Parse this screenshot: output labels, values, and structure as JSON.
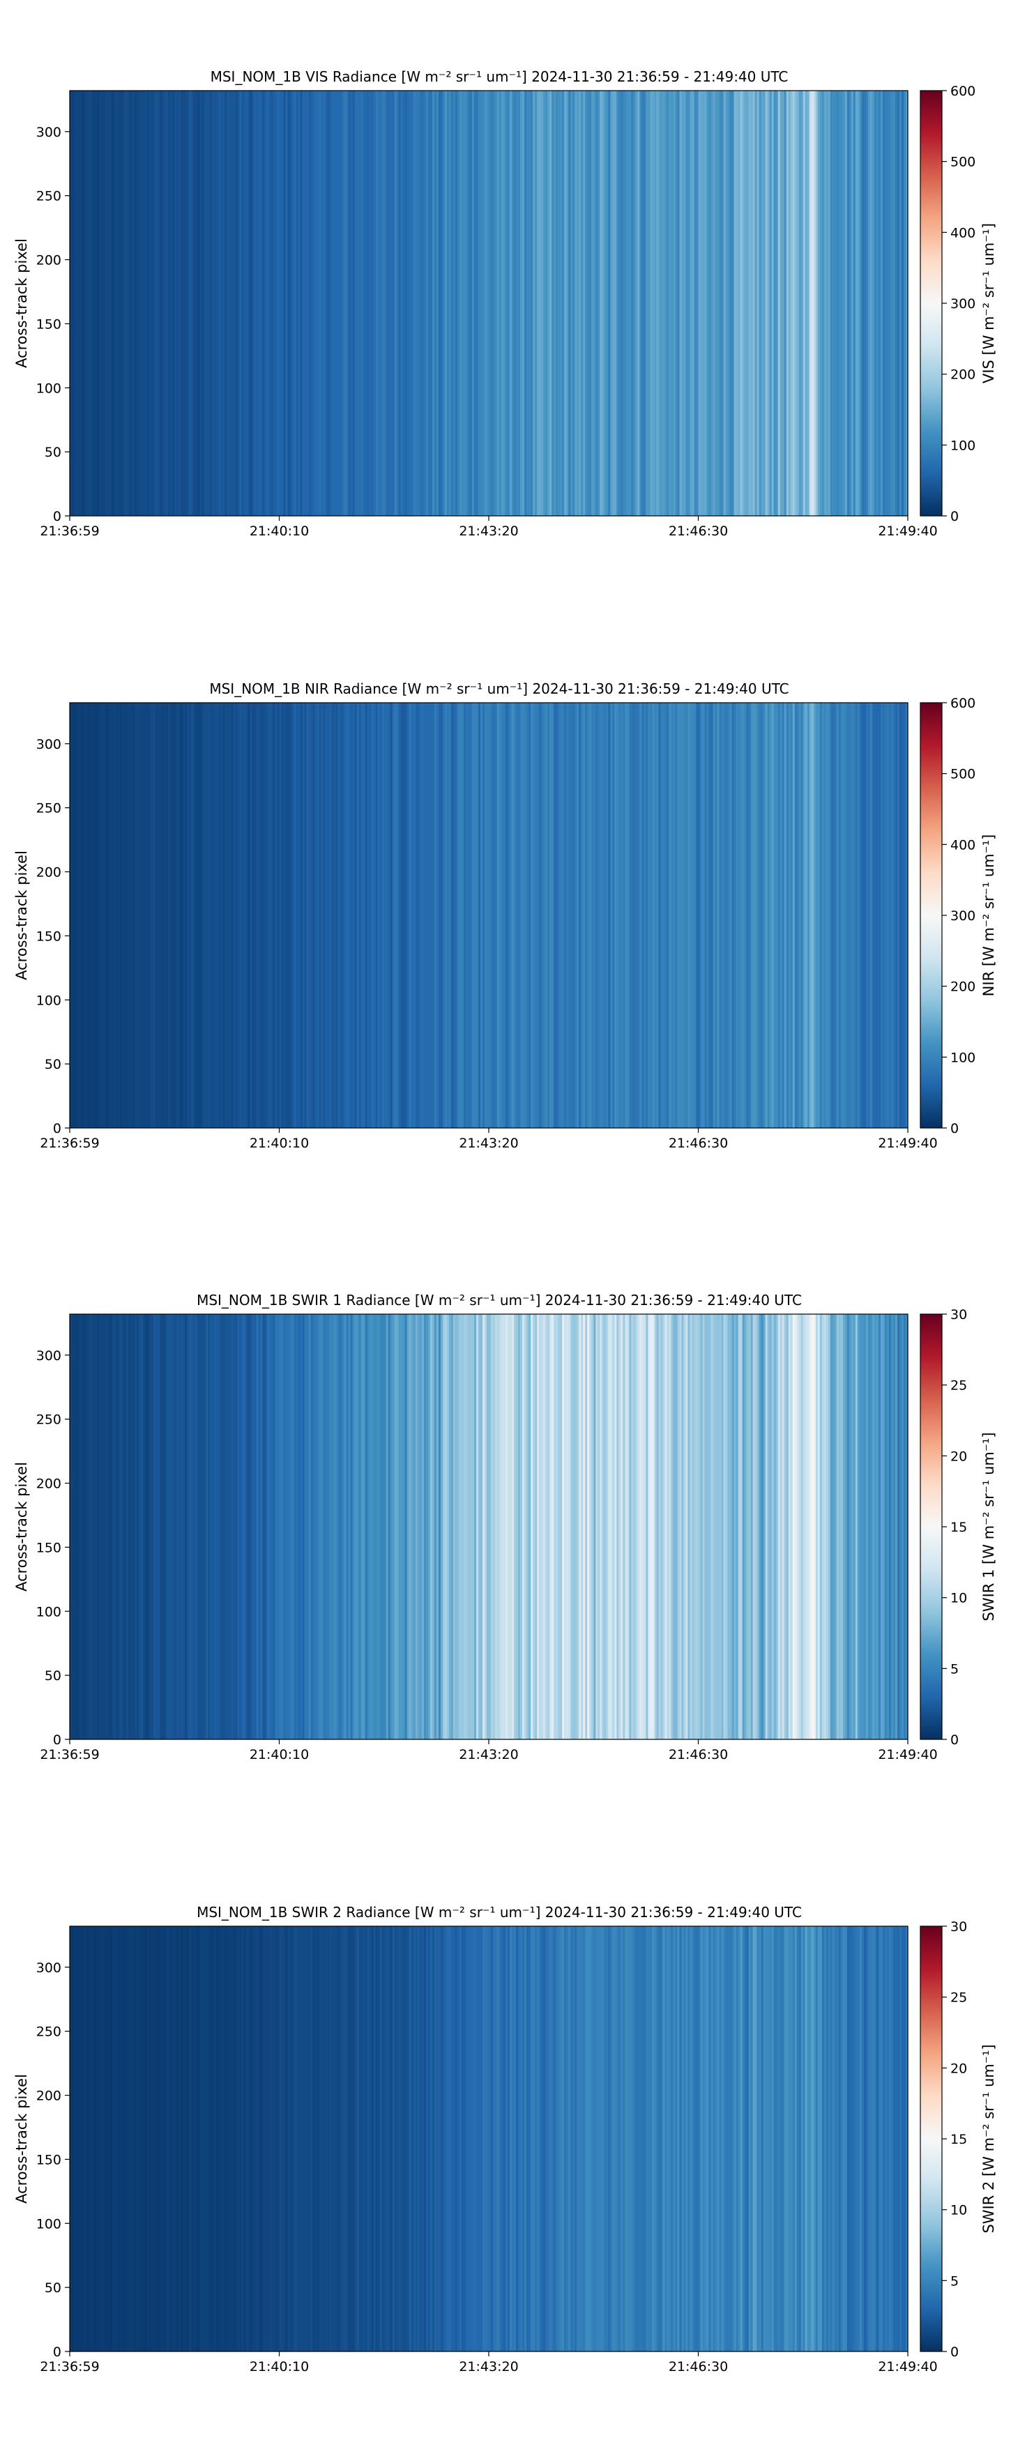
{
  "colormap": [
    "#053061",
    "#2166ac",
    "#4393c3",
    "#92c5de",
    "#d1e5f0",
    "#f7f7f7",
    "#fddbc7",
    "#f4a582",
    "#d6604d",
    "#b2182b",
    "#67001f"
  ],
  "chart_data": [
    {
      "type": "heatmap",
      "title": "MSI_NOM_1B VIS Radiance [W m⁻² sr⁻¹ um⁻¹]    2024-11-30    21:36:59 - 21:49:40 UTC",
      "xlabel": "",
      "ylabel": "Across-track pixel",
      "x_tick_labels": [
        "21:36:59",
        "21:40:10",
        "21:43:20",
        "21:46:30",
        "21:49:40"
      ],
      "y_ticks": [
        0,
        50,
        100,
        150,
        200,
        250,
        300
      ],
      "ylim": [
        0,
        332
      ],
      "colorbar": {
        "label": "VIS [W m⁻² sr⁻¹ um⁻¹]",
        "range": [
          0,
          600
        ],
        "ticks": [
          0,
          100,
          200,
          300,
          400,
          500,
          600
        ]
      },
      "profile": {
        "x": [
          0,
          0.2,
          0.4,
          0.5,
          0.6,
          0.75,
          0.88,
          0.91,
          1
        ],
        "value": [
          20,
          45,
          80,
          110,
          120,
          125,
          160,
          130,
          100
        ]
      },
      "bright_bands": [
        {
          "x": 0.885,
          "value": 260
        },
        {
          "x": 0.56,
          "value": 150
        },
        {
          "x": 0.7,
          "value": 150
        }
      ]
    },
    {
      "type": "heatmap",
      "title": "MSI_NOM_1B NIR Radiance [W m⁻² sr⁻¹ um⁻¹]    2024-11-30    21:36:59 - 21:49:40 UTC",
      "xlabel": "",
      "ylabel": "Across-track pixel",
      "x_tick_labels": [
        "21:36:59",
        "21:40:10",
        "21:43:20",
        "21:46:30",
        "21:49:40"
      ],
      "y_ticks": [
        0,
        50,
        100,
        150,
        200,
        250,
        300
      ],
      "ylim": [
        0,
        332
      ],
      "colorbar": {
        "label": "NIR [W m⁻² sr⁻¹ um⁻¹]",
        "range": [
          0,
          600
        ],
        "ticks": [
          0,
          100,
          200,
          300,
          400,
          500,
          600
        ]
      },
      "profile": {
        "x": [
          0,
          0.2,
          0.4,
          0.5,
          0.6,
          0.75,
          0.88,
          0.91,
          1
        ],
        "value": [
          15,
          35,
          65,
          85,
          90,
          95,
          120,
          95,
          70
        ]
      },
      "bright_bands": [
        {
          "x": 0.885,
          "value": 170
        }
      ]
    },
    {
      "type": "heatmap",
      "title": "MSI_NOM_1B SWIR 1 Radiance [W m⁻² sr⁻¹ um⁻¹]    2024-11-30    21:36:59 - 21:49:40 UTC",
      "xlabel": "",
      "ylabel": "Across-track pixel",
      "x_tick_labels": [
        "21:36:59",
        "21:40:10",
        "21:43:20",
        "21:46:30",
        "21:49:40"
      ],
      "y_ticks": [
        0,
        50,
        100,
        150,
        200,
        250,
        300
      ],
      "ylim": [
        0,
        332
      ],
      "colorbar": {
        "label": "SWIR 1 [W m⁻² sr⁻¹ um⁻¹]",
        "range": [
          0,
          30
        ],
        "ticks": [
          0,
          5,
          10,
          15,
          20,
          25,
          30
        ]
      },
      "profile": {
        "x": [
          0,
          0.2,
          0.3,
          0.4,
          0.5,
          0.62,
          0.72,
          0.82,
          0.88,
          0.91,
          1
        ],
        "value": [
          1,
          2.5,
          4.5,
          6.5,
          10,
          11.5,
          10,
          8,
          13,
          8,
          5
        ]
      },
      "bright_bands": [
        {
          "x": 0.885,
          "value": 16
        },
        {
          "x": 0.52,
          "value": 13
        },
        {
          "x": 0.68,
          "value": 13
        }
      ]
    },
    {
      "type": "heatmap",
      "title": "MSI_NOM_1B SWIR 2 Radiance [W m⁻² sr⁻¹ um⁻¹]    2024-11-30    21:36:59 - 21:49:40 UTC",
      "xlabel": "",
      "ylabel": "Across-track pixel",
      "x_tick_labels": [
        "21:36:59",
        "21:40:10",
        "21:43:20",
        "21:46:30",
        "21:49:40"
      ],
      "y_ticks": [
        0,
        50,
        100,
        150,
        200,
        250,
        300
      ],
      "ylim": [
        0,
        332
      ],
      "colorbar": {
        "label": "SWIR 2 [W m⁻² sr⁻¹ um⁻¹]",
        "range": [
          0,
          30
        ],
        "ticks": [
          0,
          5,
          10,
          15,
          20,
          25,
          30
        ]
      },
      "profile": {
        "x": [
          0,
          0.2,
          0.4,
          0.5,
          0.6,
          0.75,
          0.88,
          0.91,
          1
        ],
        "value": [
          0.5,
          1,
          2,
          3.5,
          4.5,
          5,
          5.5,
          4.5,
          3.5
        ]
      },
      "bright_bands": [
        {
          "x": 0.885,
          "value": 7
        }
      ]
    }
  ]
}
